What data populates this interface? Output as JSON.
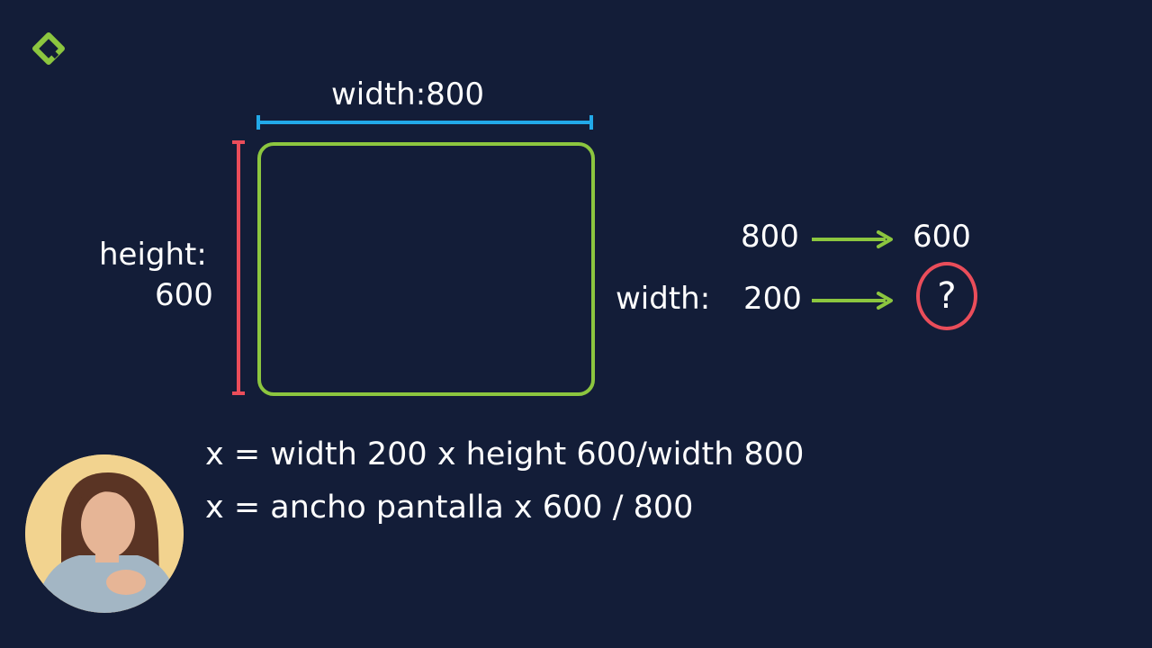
{
  "slide": {
    "width_label": "width:800",
    "height_label_line1": "height:",
    "height_label_line2": "600",
    "ratio_top_left": "800",
    "ratio_top_right": "600",
    "ratio_bottom_prefix": "width:",
    "ratio_bottom_left": "200",
    "ratio_bottom_right": "?",
    "formula_line1": "x = width 200 x height 600/width 800",
    "formula_line2": "x = ancho pantalla x 600 / 800"
  },
  "colors": {
    "background": "#131d38",
    "rectangle": "#8cc63f",
    "width_marker": "#22a9e8",
    "height_marker": "#ea4d5a",
    "arrow": "#8cc63f",
    "question_circle": "#ea4d5a",
    "logo": "#8cc63f"
  },
  "icons": {
    "logo": "brand-logo-icon",
    "arrow": "arrow-right-icon"
  }
}
